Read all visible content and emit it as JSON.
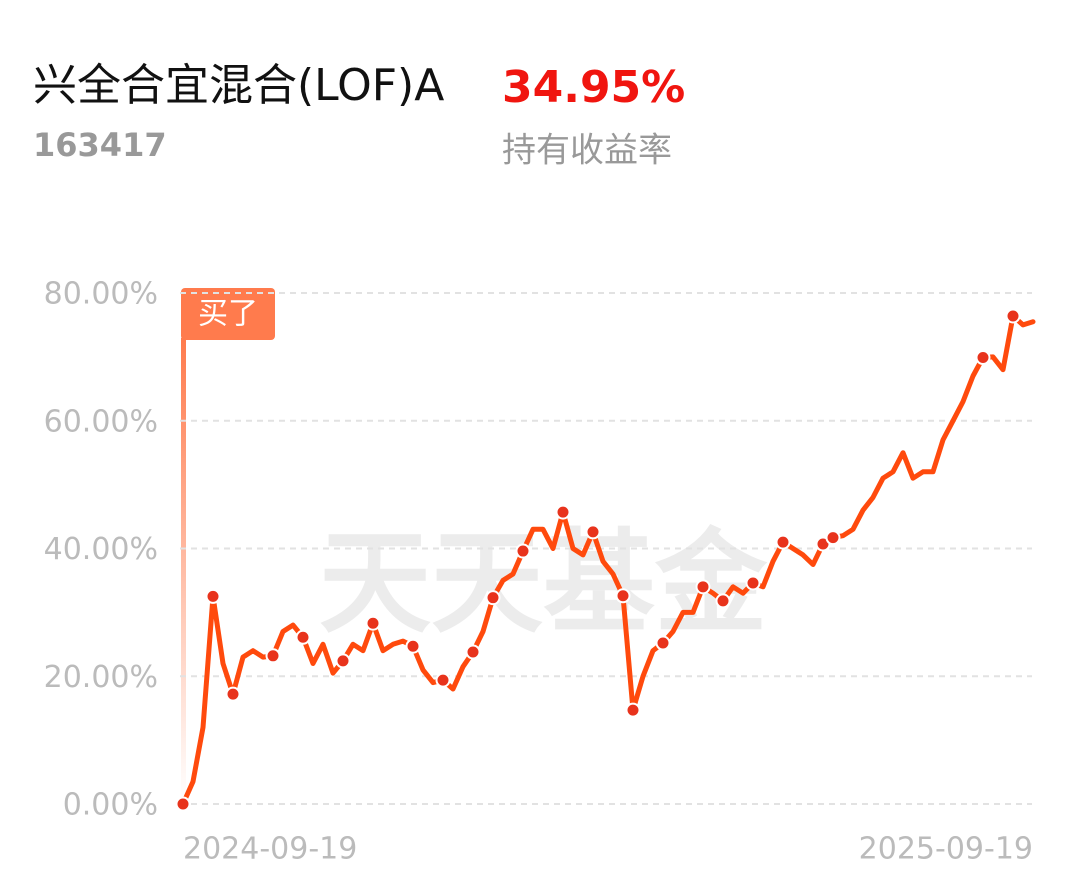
{
  "header": {
    "title": "兴全合宜混合(LOF)A",
    "code": "163417",
    "return": "34.95%",
    "return_caption": "持有收益率"
  },
  "chart_data": {
    "type": "line",
    "annotation": "买了",
    "watermark": "天天基金",
    "categories": [
      "2024-09-19",
      null,
      null,
      null,
      null,
      null,
      null,
      null,
      null,
      null,
      null,
      null,
      null,
      null,
      null,
      null,
      null,
      null,
      null,
      null,
      null,
      null,
      null,
      null,
      null,
      null,
      null,
      null,
      null,
      null,
      null,
      null,
      null,
      null,
      null,
      null,
      null,
      null,
      null,
      null,
      null,
      null,
      null,
      null,
      null,
      null,
      null,
      null,
      null,
      null,
      null,
      null,
      null,
      null,
      null,
      null,
      null,
      null,
      null,
      null,
      null,
      null,
      null,
      null,
      null,
      null,
      null,
      null,
      null,
      null,
      null,
      null,
      null,
      null,
      null,
      null,
      null,
      null,
      null,
      null,
      null,
      null,
      null,
      null,
      null,
      "2025-09-19"
    ],
    "series": [
      {
        "color": "#ff4a0d",
        "values": [
          0,
          3.5,
          12,
          32.5,
          22,
          17.2,
          23,
          24,
          23,
          23.2,
          27,
          28,
          26.1,
          22,
          25,
          20.5,
          22.4,
          25,
          24,
          28.3,
          24,
          25,
          25.5,
          24.7,
          21,
          19,
          19.4,
          18,
          21.5,
          23.8,
          27,
          32.3,
          35,
          36,
          39.6,
          43,
          43,
          40,
          45.7,
          40,
          39,
          42.6,
          38,
          36,
          32.6,
          14.7,
          20,
          24,
          25.2,
          27,
          30,
          30,
          34,
          33,
          31.8,
          34,
          33,
          34.6,
          34,
          38,
          41,
          40,
          39,
          37.5,
          40.7,
          41.7,
          42,
          43,
          46,
          48,
          51,
          52,
          55,
          51,
          52,
          52,
          57,
          60,
          63,
          67,
          69.9,
          70,
          68,
          76.4,
          75,
          75.5
        ]
      },
      {
        "color": "#e8331c",
        "values": [
          0,
          null,
          null,
          32.5,
          null,
          17.2,
          null,
          null,
          null,
          23.2,
          null,
          null,
          26.1,
          null,
          null,
          null,
          22.4,
          null,
          null,
          28.3,
          null,
          null,
          null,
          24.7,
          null,
          null,
          19.4,
          null,
          null,
          23.8,
          null,
          32.3,
          null,
          null,
          39.6,
          null,
          null,
          null,
          45.7,
          null,
          null,
          42.6,
          null,
          null,
          32.6,
          14.7,
          null,
          null,
          25.2,
          null,
          null,
          null,
          34,
          null,
          31.8,
          null,
          null,
          34.6,
          null,
          null,
          41,
          null,
          null,
          null,
          40.7,
          41.7,
          null,
          null,
          null,
          null,
          null,
          null,
          null,
          null,
          null,
          null,
          null,
          null,
          null,
          null,
          69.9,
          null,
          null,
          76.4,
          null,
          null
        ]
      }
    ],
    "ylim": [
      0,
      80
    ],
    "yticks": [
      {
        "value": 0,
        "label": "0.00%"
      },
      {
        "value": 20,
        "label": "20.00%"
      },
      {
        "value": 40,
        "label": "40.00%"
      },
      {
        "value": 60,
        "label": "60.00%"
      },
      {
        "value": 80,
        "label": "80.00%"
      }
    ],
    "grid": true
  }
}
